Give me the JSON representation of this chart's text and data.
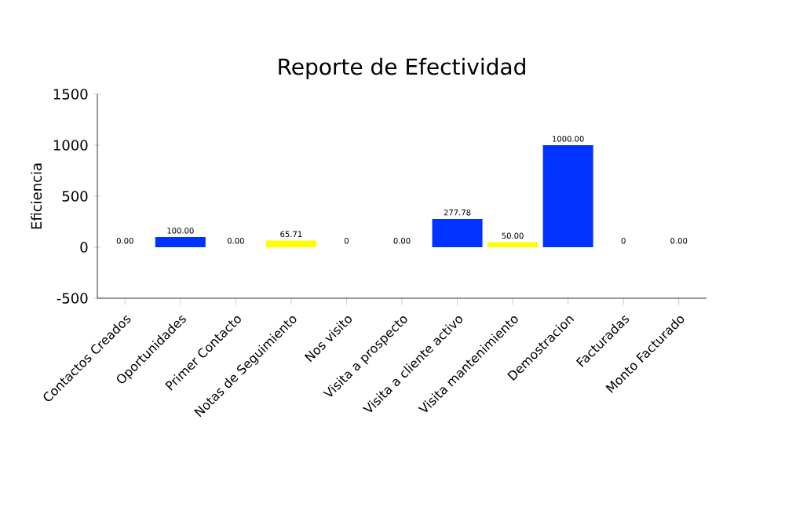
{
  "chart_data": {
    "type": "bar",
    "title": "Reporte de Efectividad",
    "ylabel": "Eficiencia",
    "categories": [
      "Contactos Creados",
      "Oportunidades",
      "Primer Contacto",
      "Notas de Seguimiento",
      "Nos visito",
      "Visita a prospecto",
      "Visita a cliente activo",
      "Visita mantenimiento",
      "Demostracion",
      "Facturadas",
      "Monto Facturado"
    ],
    "values": [
      0,
      100,
      0,
      65.71,
      0,
      0,
      277.78,
      50,
      1000,
      0,
      0
    ],
    "colors": [
      "#f08080",
      "#0033ff",
      "#f08080",
      "#ffff00",
      "#f08080",
      "#f08080",
      "#0033ff",
      "#ffff00",
      "#0033ff",
      "#f08080",
      "#f08080"
    ],
    "value_labels": [
      "0.00",
      "100.00",
      "0.00",
      "65.71",
      "0",
      "0.00",
      "277.78",
      "50.00",
      "1000.00",
      "0",
      "0.00"
    ],
    "ylim": [
      -500,
      1500
    ],
    "yticks": [
      -500,
      0,
      500,
      1000,
      1500
    ],
    "grid": false
  }
}
